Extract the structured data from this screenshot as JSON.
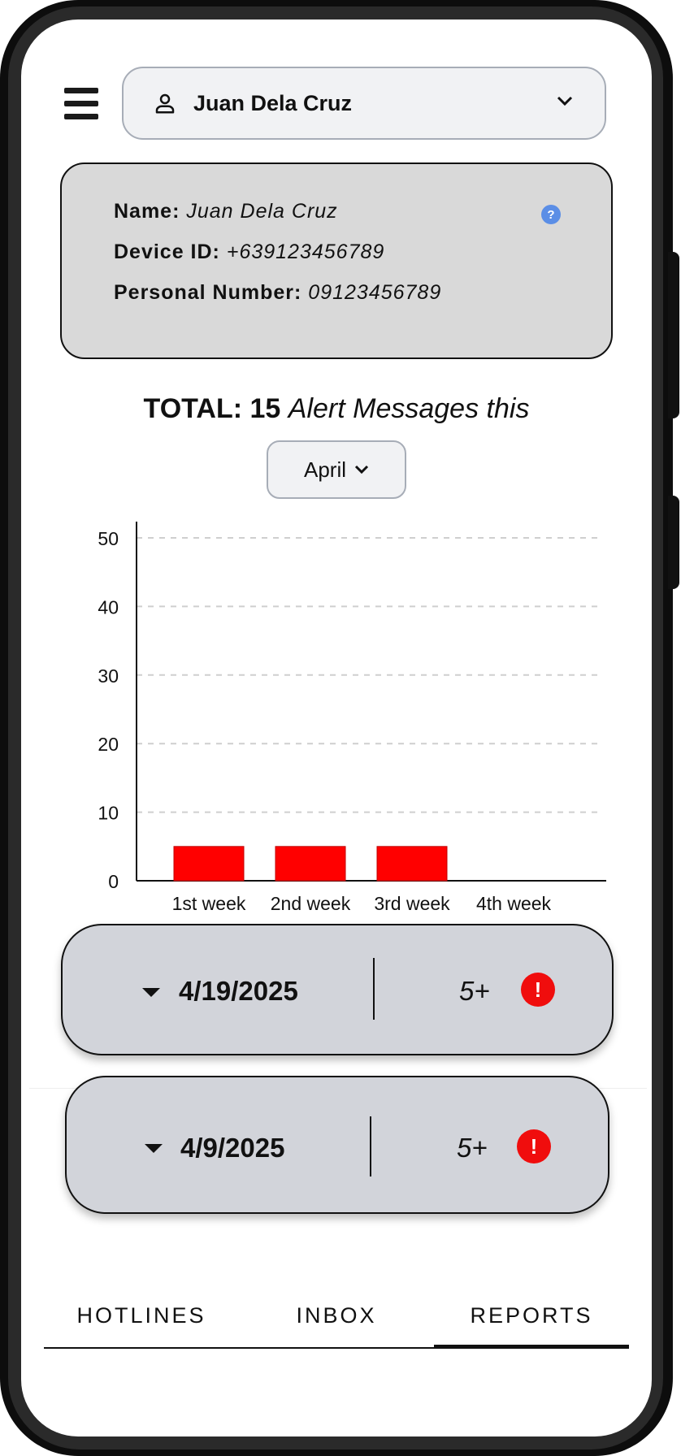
{
  "header": {
    "user_name": "Juan Dela Cruz"
  },
  "info": {
    "name_label": "Name:",
    "name_value": "Juan Dela Cruz",
    "device_label": "Device ID:",
    "device_value": "+639123456789",
    "personal_label": "Personal Number:",
    "personal_value": "09123456789",
    "help_glyph": "?"
  },
  "summary": {
    "total_label": "TOTAL:",
    "total_value": "15",
    "total_suffix": "Alert Messages this",
    "month": "April"
  },
  "chart_data": {
    "type": "bar",
    "categories": [
      "1st week",
      "2nd week",
      "3rd week",
      "4th week"
    ],
    "values": [
      5,
      5,
      5,
      0
    ],
    "ylim": [
      0,
      50
    ],
    "yticks": [
      0,
      10,
      20,
      30,
      40,
      50
    ],
    "grid": true,
    "bar_color": "#ff0000",
    "title": "",
    "xlabel": "",
    "ylabel": ""
  },
  "reports": [
    {
      "date": "4/19/2025",
      "count": "5+",
      "alert_glyph": "!"
    },
    {
      "date": "4/9/2025",
      "count": "5+",
      "alert_glyph": "!"
    }
  ],
  "tabs": [
    {
      "label": "HOTLINES"
    },
    {
      "label": "INBOX"
    },
    {
      "label": "REPORTS",
      "active": true
    }
  ],
  "colors": {
    "alert": "#f00d0d",
    "help": "#5b8ee6",
    "card": "#d9d9d9",
    "report_card": "#d2d4da"
  }
}
